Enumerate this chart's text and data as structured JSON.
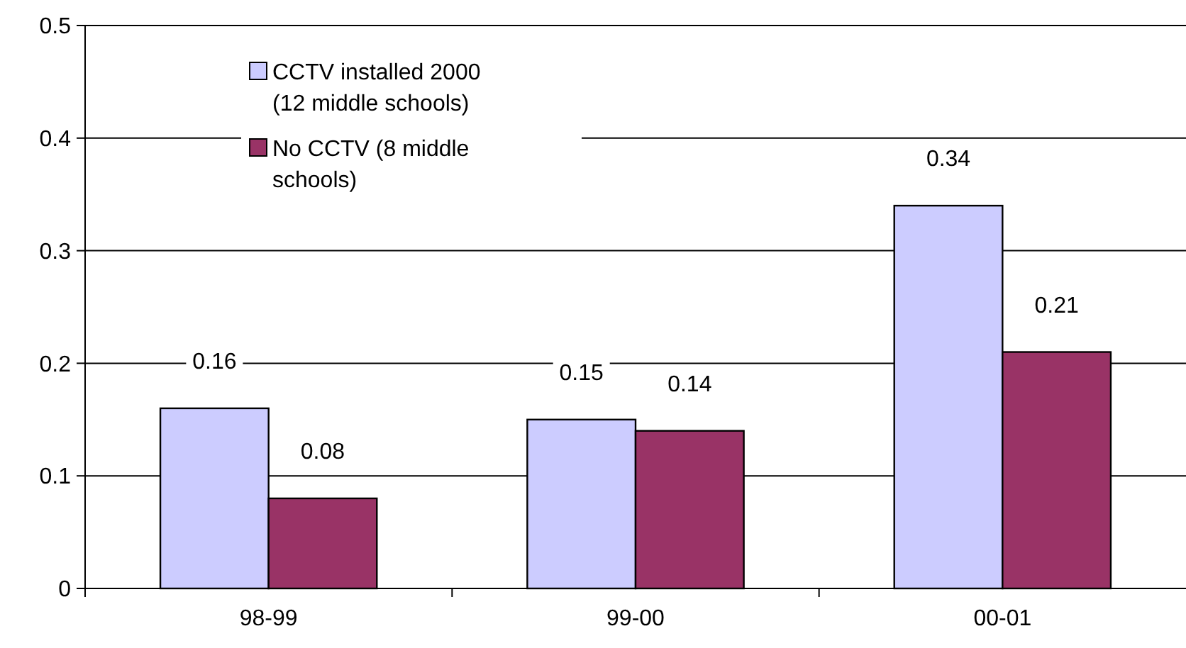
{
  "chart_data": {
    "type": "bar",
    "categories": [
      "98-99",
      "99-00",
      "00-01"
    ],
    "series": [
      {
        "name": "CCTV installed 2000 (12 middle schools)",
        "color": "#ccccff",
        "values": [
          0.16,
          0.15,
          0.34
        ]
      },
      {
        "name": "No CCTV (8 middle schools)",
        "color": "#993366",
        "values": [
          0.08,
          0.14,
          0.21
        ]
      }
    ],
    "ylim": [
      0,
      0.5
    ],
    "yticks": [
      0,
      0.1,
      0.2,
      0.3,
      0.4,
      0.5
    ],
    "grid": "y",
    "legend": "top left",
    "data_labels": true
  }
}
